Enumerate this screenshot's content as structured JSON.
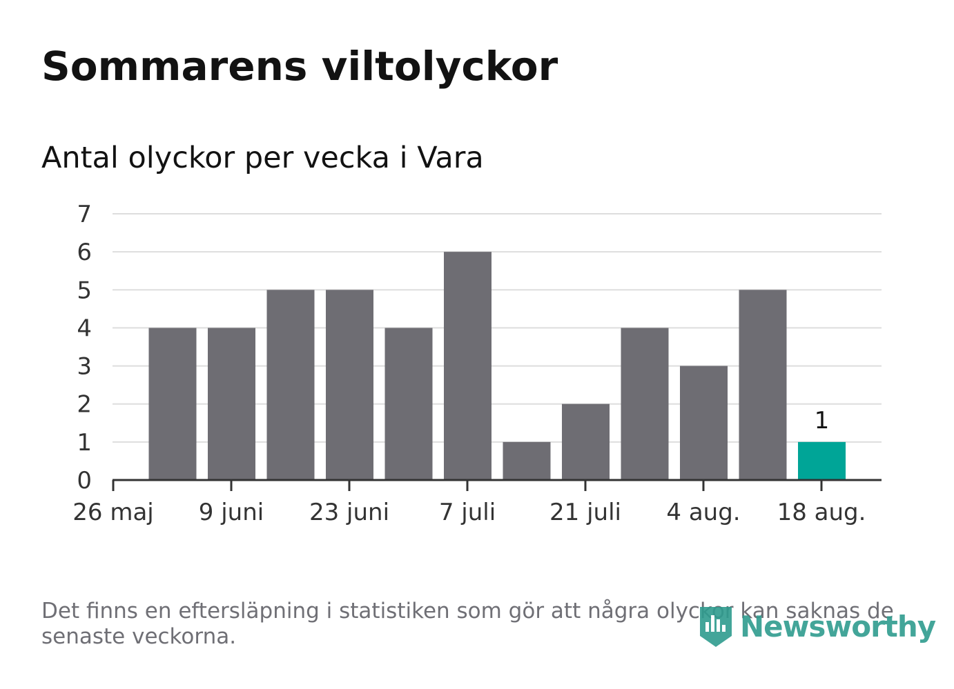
{
  "header": {
    "title": "Sommarens viltolyckor",
    "subtitle": "Antal olyckor per vecka i Vara"
  },
  "footnote": "Det finns en eftersläpning i statistiken som gör att några olyckor kan saknas de senaste veckorna.",
  "logo": {
    "text": "Newsworthy",
    "icon": "bar-chart-badge-icon"
  },
  "colors": {
    "bar": "#6e6d73",
    "highlight": "#00a597",
    "grid": "#dddddd",
    "axis": "#333333",
    "text": "#333333"
  },
  "chart_data": {
    "type": "bar",
    "x_tick_labels": [
      "26 maj",
      "9 juni",
      "23 juni",
      "7 juli",
      "21 juli",
      "4 aug.",
      "18 aug."
    ],
    "values": [
      4,
      4,
      5,
      5,
      4,
      6,
      1,
      2,
      4,
      3,
      5,
      1
    ],
    "highlight_index": 11,
    "data_labels": [
      {
        "index": 11,
        "text": "1"
      }
    ],
    "y_ticks": [
      "0",
      "1",
      "2",
      "3",
      "4",
      "5",
      "6",
      "7"
    ],
    "ylim": [
      0,
      7
    ],
    "grid": true
  }
}
